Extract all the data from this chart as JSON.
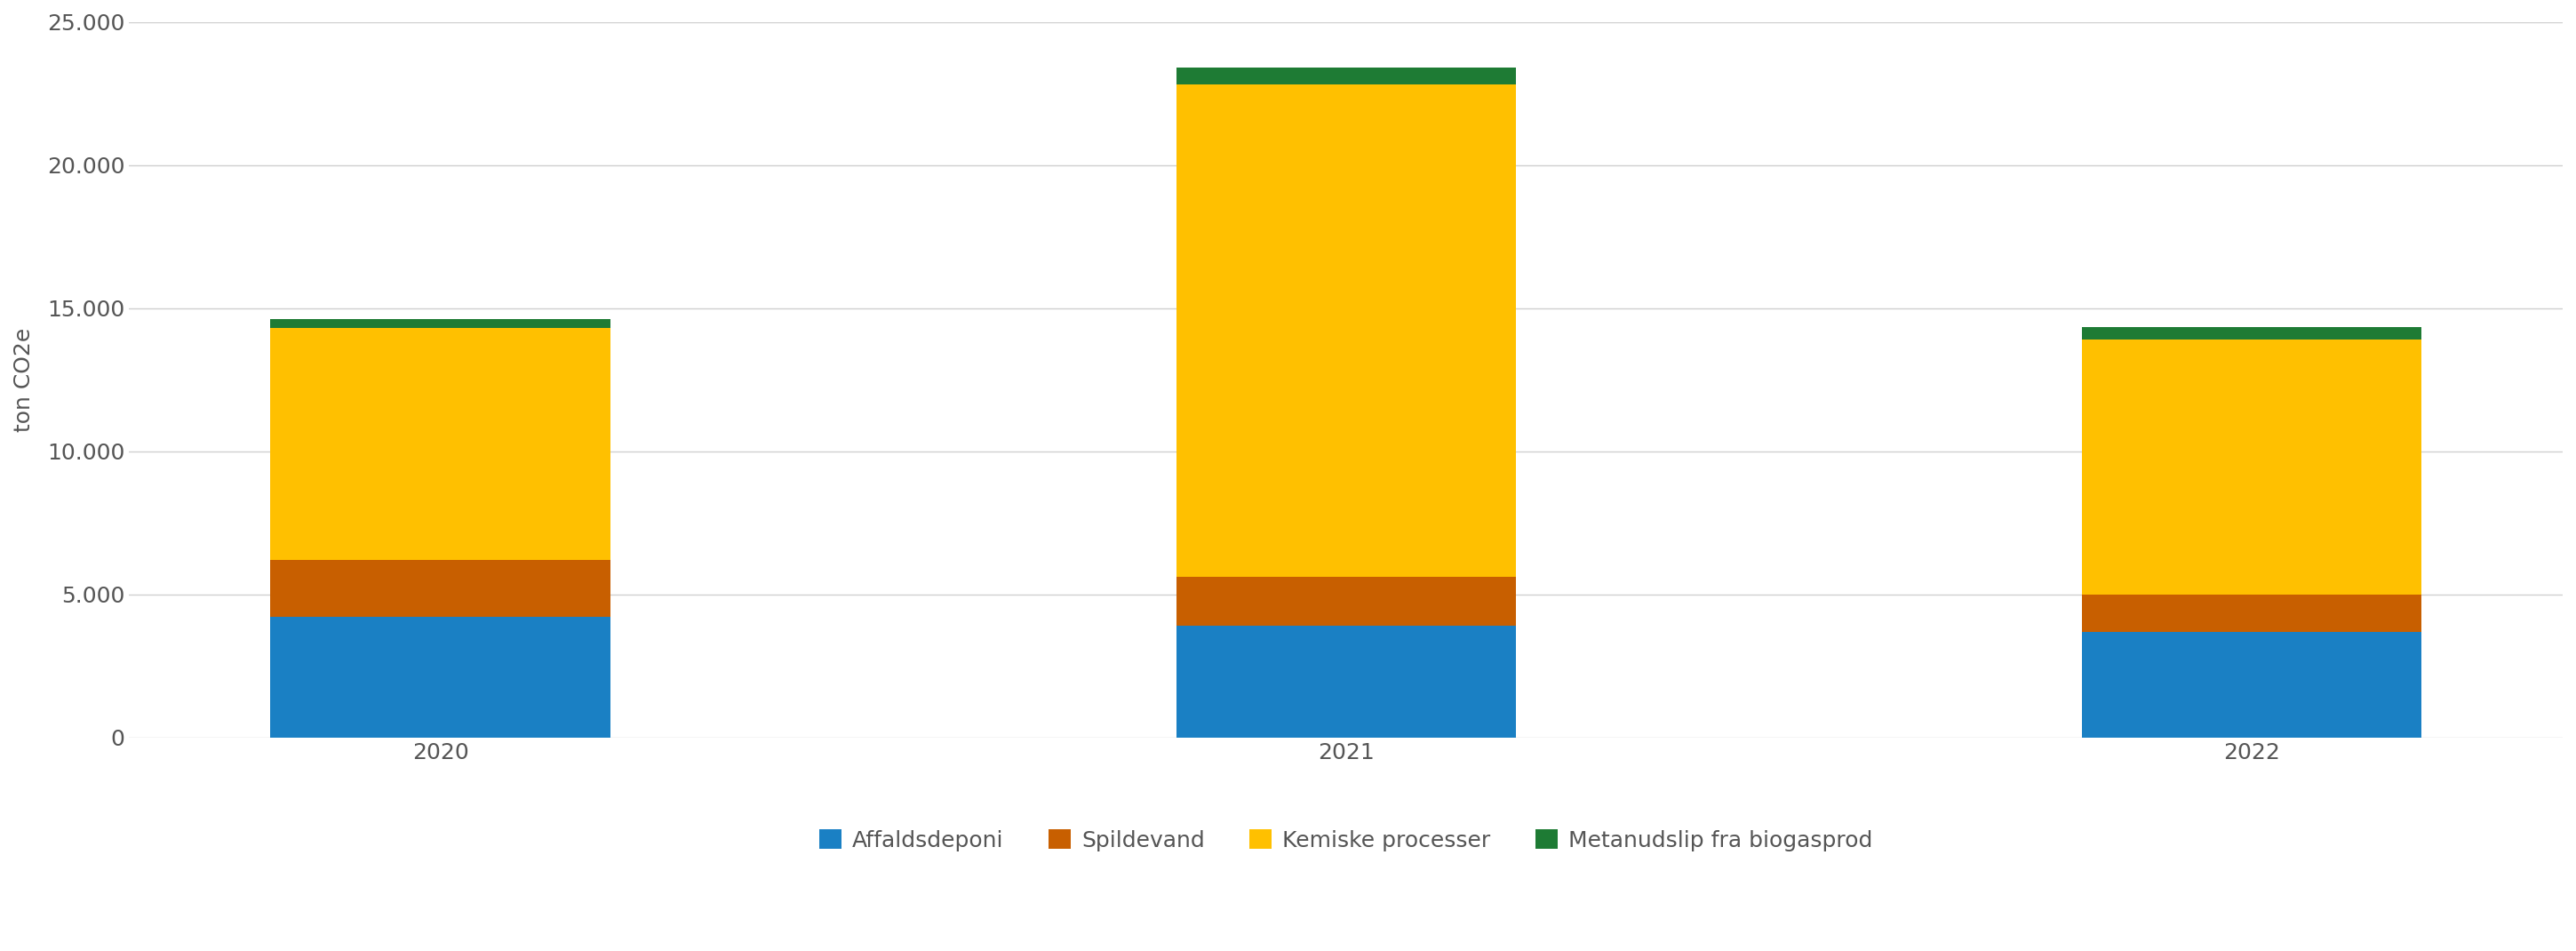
{
  "categories": [
    "2020",
    "2021",
    "2022"
  ],
  "series": {
    "Affaldsdeponi": [
      4200,
      3900,
      3700
    ],
    "Spildevand": [
      2000,
      1700,
      1300
    ],
    "Kemiske processer": [
      8100,
      17200,
      8900
    ],
    "Metanudslip fra biogasprod": [
      300,
      600,
      450
    ]
  },
  "colors": {
    "Affaldsdeponi": "#1a80c4",
    "Spildevand": "#c85f00",
    "Kemiske processer": "#ffc000",
    "Metanudslip fra biogasprod": "#1e7b34"
  },
  "ylabel": "ton CO2e",
  "ylim": [
    0,
    25000
  ],
  "yticks": [
    0,
    5000,
    10000,
    15000,
    20000,
    25000
  ],
  "bar_width": 0.6,
  "x_positions": [
    0,
    1.6,
    3.2
  ],
  "xlim": [
    -0.55,
    3.75
  ],
  "background_color": "#ffffff",
  "grid_color": "#d0d0d0",
  "tick_color": "#555555",
  "legend_fontsize": 18,
  "ylabel_fontsize": 18,
  "tick_fontsize": 18
}
